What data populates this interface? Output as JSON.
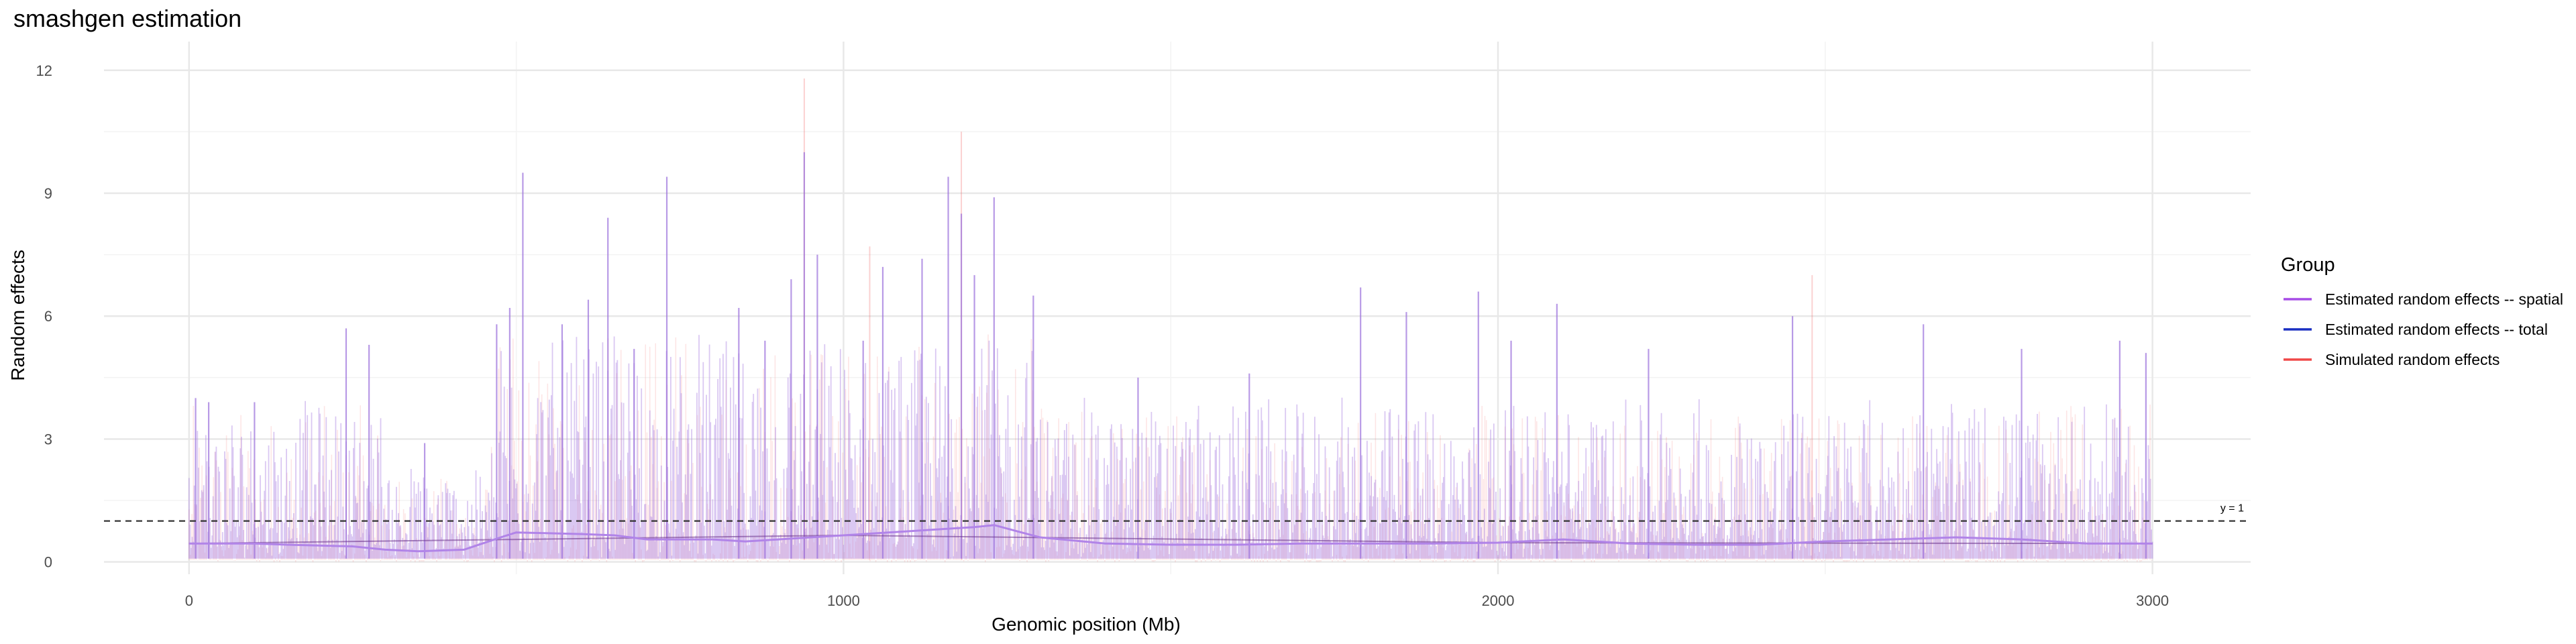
{
  "chart_data": {
    "type": "line",
    "title": "smashgen estimation",
    "xlabel": "Genomic position (Mb)",
    "ylabel": "Random effects",
    "xlim": [
      -130,
      3150
    ],
    "ylim": [
      -0.3,
      12.7
    ],
    "x_ticks": [
      0,
      1000,
      2000,
      3000
    ],
    "x_tick_labels": [
      "0",
      "1000",
      "2000",
      "3000"
    ],
    "y_ticks": [
      0,
      3,
      6,
      9,
      12
    ],
    "y_tick_labels": [
      "0",
      "3",
      "6",
      "9",
      "12"
    ],
    "grid": true,
    "legend": {
      "title": "Group",
      "position": "right",
      "entries": [
        {
          "label": "Estimated random effects -- spatial",
          "color": "#a64ce6"
        },
        {
          "label": "Estimated random effects -- total",
          "color": "#1a2fc2"
        },
        {
          "label": "Simulated random effects",
          "color": "#f04848"
        }
      ]
    },
    "reference_line": {
      "y": 1,
      "label": "y = 1",
      "style": "dashed",
      "color": "#333333"
    },
    "series": [
      {
        "name": "Estimated random effects -- spatial",
        "color": "#a64ce6",
        "x": [
          0,
          100,
          150,
          250,
          300,
          350,
          420,
          480,
          500,
          550,
          600,
          650,
          700,
          800,
          850,
          900,
          950,
          1000,
          1050,
          1100,
          1150,
          1200,
          1230,
          1300,
          1400,
          1500,
          1600,
          1700,
          1800,
          1900,
          2000,
          2100,
          2200,
          2300,
          2400,
          2500,
          2600,
          2700,
          2800,
          2900,
          3000
        ],
        "y": [
          0.45,
          0.45,
          0.42,
          0.38,
          0.3,
          0.26,
          0.3,
          0.62,
          0.72,
          0.7,
          0.68,
          0.65,
          0.55,
          0.55,
          0.5,
          0.55,
          0.6,
          0.65,
          0.7,
          0.75,
          0.8,
          0.85,
          0.9,
          0.6,
          0.45,
          0.42,
          0.42,
          0.45,
          0.45,
          0.45,
          0.47,
          0.55,
          0.45,
          0.42,
          0.42,
          0.5,
          0.55,
          0.6,
          0.55,
          0.45,
          0.45
        ]
      },
      {
        "name": "Estimated random effects -- total",
        "color": "#1a2fc2",
        "x": [
          0,
          1000,
          2000,
          3000
        ],
        "y": [
          0.45,
          0.65,
          0.47,
          0.45
        ]
      },
      {
        "name": "Simulated random effects",
        "color": "#f04848",
        "x": [
          0,
          1000,
          2000,
          3000
        ],
        "y": [
          0.45,
          0.65,
          0.47,
          0.45
        ]
      }
    ],
    "peaks": [
      {
        "x": 10,
        "y": 4.0
      },
      {
        "x": 30,
        "y": 3.9
      },
      {
        "x": 100,
        "y": 3.9
      },
      {
        "x": 240,
        "y": 5.7
      },
      {
        "x": 275,
        "y": 5.3
      },
      {
        "x": 360,
        "y": 2.9
      },
      {
        "x": 470,
        "y": 5.8
      },
      {
        "x": 490,
        "y": 6.2
      },
      {
        "x": 510,
        "y": 9.5
      },
      {
        "x": 570,
        "y": 5.8
      },
      {
        "x": 610,
        "y": 6.4
      },
      {
        "x": 640,
        "y": 8.4
      },
      {
        "x": 680,
        "y": 5.2
      },
      {
        "x": 730,
        "y": 9.4
      },
      {
        "x": 840,
        "y": 6.2
      },
      {
        "x": 880,
        "y": 5.4
      },
      {
        "x": 920,
        "y": 6.9
      },
      {
        "x": 940,
        "y": 10.0
      },
      {
        "x": 960,
        "y": 7.5
      },
      {
        "x": 1030,
        "y": 5.4
      },
      {
        "x": 1060,
        "y": 7.2
      },
      {
        "x": 1120,
        "y": 7.4
      },
      {
        "x": 1160,
        "y": 9.4
      },
      {
        "x": 1180,
        "y": 8.5
      },
      {
        "x": 1200,
        "y": 7.0
      },
      {
        "x": 1230,
        "y": 8.9
      },
      {
        "x": 1290,
        "y": 6.5
      },
      {
        "x": 1450,
        "y": 4.5
      },
      {
        "x": 1620,
        "y": 4.6
      },
      {
        "x": 1790,
        "y": 6.7
      },
      {
        "x": 1860,
        "y": 6.1
      },
      {
        "x": 1970,
        "y": 6.6
      },
      {
        "x": 2020,
        "y": 5.4
      },
      {
        "x": 2090,
        "y": 6.3
      },
      {
        "x": 2230,
        "y": 5.2
      },
      {
        "x": 2450,
        "y": 6.0
      },
      {
        "x": 2650,
        "y": 5.8
      },
      {
        "x": 2800,
        "y": 5.2
      },
      {
        "x": 2950,
        "y": 5.4
      },
      {
        "x": 2990,
        "y": 5.1
      }
    ],
    "background_noise_max": 3.5,
    "simulated_spikes": [
      {
        "x": 940,
        "y": 11.8
      },
      {
        "x": 1180,
        "y": 10.5
      },
      {
        "x": 2480,
        "y": 7.0
      },
      {
        "x": 1040,
        "y": 7.7
      }
    ]
  }
}
